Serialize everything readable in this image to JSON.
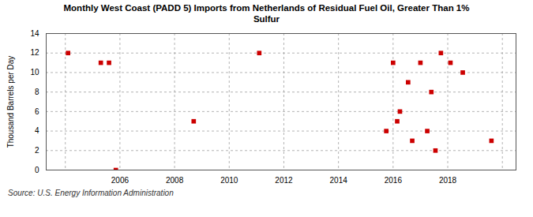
{
  "chart_data": {
    "type": "scatter",
    "title": "Monthly West Coast (PADD 5) Imports from Netherlands of Residual Fuel Oil, Greater Than 1%\nSulfur",
    "ylabel": "Thousand Barrels per Day",
    "annotations": [
      "Source: U.S. Energy Information Administration"
    ],
    "x": [
      2004.1,
      2005.3,
      2005.6,
      2005.85,
      2008.7,
      2011.1,
      2015.75,
      2016.0,
      2016.15,
      2016.25,
      2016.55,
      2016.7,
      2017.0,
      2017.25,
      2017.4,
      2017.55,
      2017.75,
      2018.1,
      2018.55,
      2019.6
    ],
    "values": [
      12,
      11,
      11,
      0,
      5,
      12,
      4,
      11,
      5,
      6,
      9,
      3,
      11,
      4,
      8,
      2,
      12,
      11,
      10,
      3
    ],
    "color": "#cc0000",
    "marker": "square",
    "xlim": [
      2003.3,
      2020.5
    ],
    "xticks": [
      {
        "value": 2004,
        "label": null
      },
      2006,
      2008,
      2010,
      2012,
      2014,
      2016,
      2018,
      {
        "value": 2020,
        "label": null
      }
    ],
    "ylim": [
      0,
      14
    ],
    "yticks": [
      0,
      2,
      4,
      6,
      8,
      10,
      12,
      14
    ],
    "grid": true
  }
}
